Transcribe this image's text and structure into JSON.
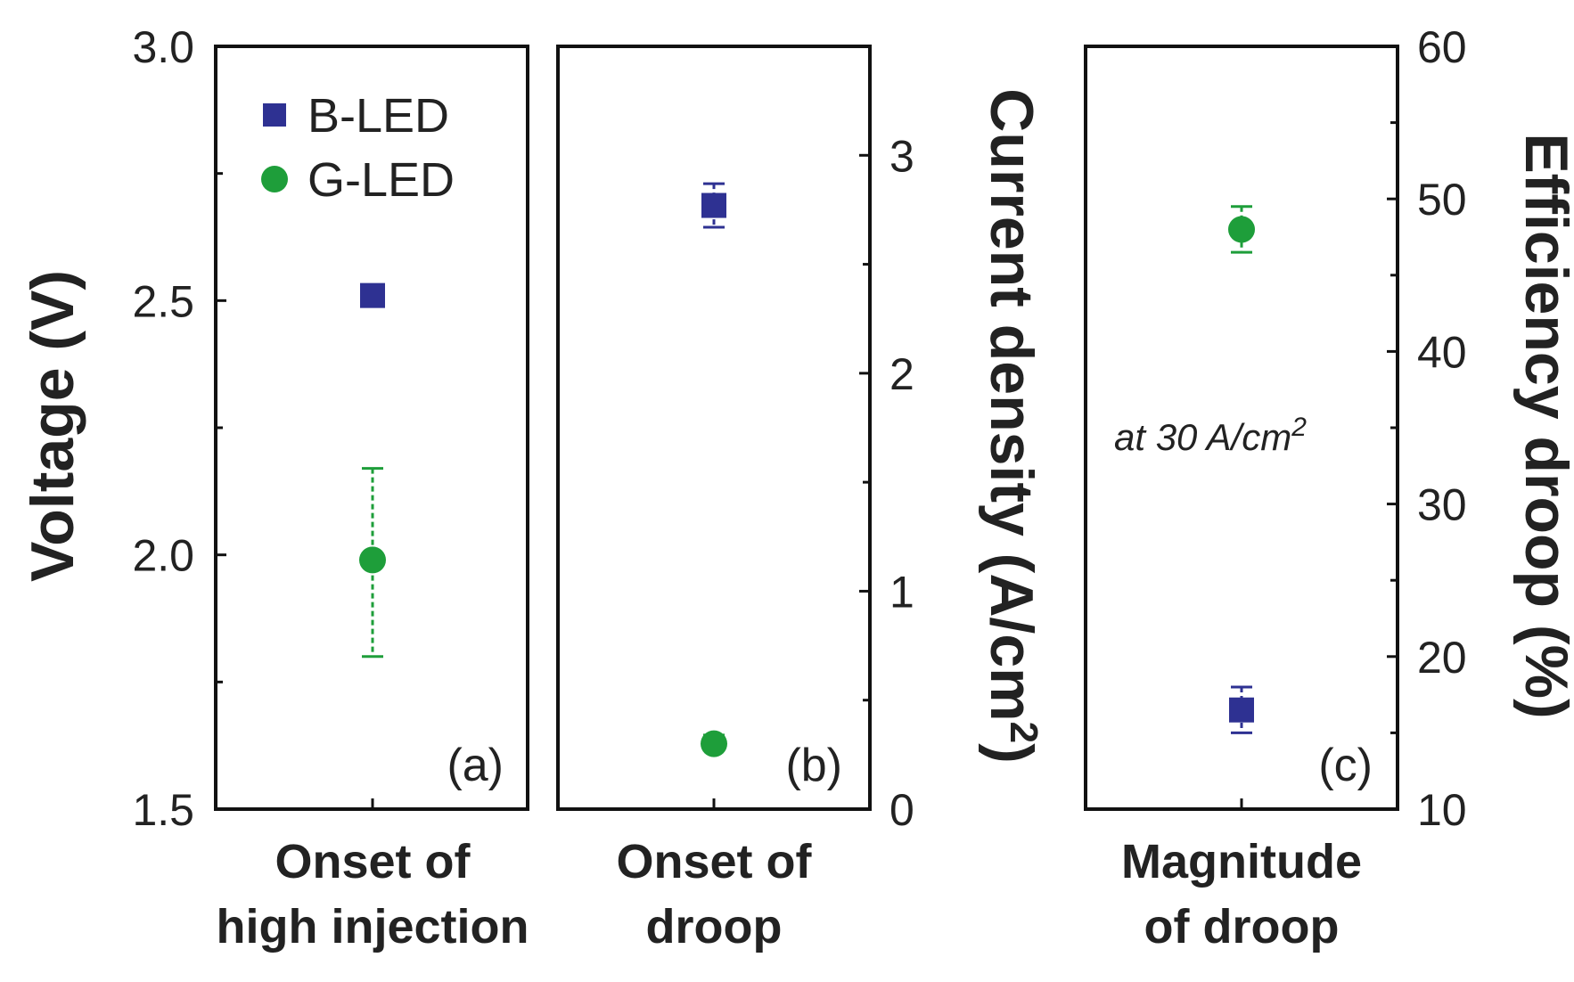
{
  "chart_data": [
    {
      "panel": "(a)",
      "type": "scatter",
      "category": [
        "Onset of",
        "high injection"
      ],
      "ylabel": "Voltage (V)",
      "ylim": [
        1.5,
        3.0
      ],
      "yticks": [
        "1.5",
        "2.0",
        "2.5",
        "3.0"
      ],
      "legend": {
        "placement": "top-left",
        "entries": [
          "B-LED",
          "G-LED"
        ]
      },
      "series": [
        {
          "name": "B-LED",
          "marker": "square",
          "color": "#2E3192",
          "value": 2.51,
          "error": [
            2.5,
            2.52
          ]
        },
        {
          "name": "G-LED",
          "marker": "circle",
          "color": "#1E9E3A",
          "value": 1.99,
          "error": [
            1.8,
            2.17
          ]
        }
      ]
    },
    {
      "panel": "(b)",
      "type": "scatter",
      "category": [
        "Onset of",
        "droop"
      ],
      "ylabel": "Current density (A/cm2)",
      "ylim": [
        0,
        3.5
      ],
      "yticks": [
        "0",
        "1",
        "2",
        "3"
      ],
      "series": [
        {
          "name": "B-LED",
          "marker": "square",
          "color": "#2E3192",
          "value": 2.77,
          "error": [
            2.67,
            2.87
          ]
        },
        {
          "name": "G-LED",
          "marker": "circle",
          "color": "#1E9E3A",
          "value": 0.3,
          "error": [
            0.27,
            0.34
          ]
        }
      ]
    },
    {
      "panel": "(c)",
      "type": "scatter",
      "category": [
        "Magnitude",
        "of droop"
      ],
      "ylabel": "Efficiency droop (%)",
      "ylim": [
        10,
        60
      ],
      "yticks": [
        "10",
        "20",
        "30",
        "40",
        "50",
        "60"
      ],
      "annotation": "at 30 A/cm²",
      "series": [
        {
          "name": "B-LED",
          "marker": "square",
          "color": "#2E3192",
          "value": 16.5,
          "error": [
            15.0,
            18.0
          ]
        },
        {
          "name": "G-LED",
          "marker": "circle",
          "color": "#1E9E3A",
          "value": 48.0,
          "error": [
            46.5,
            49.5
          ]
        }
      ]
    }
  ],
  "text": {
    "a_ylabel": "Voltage (V)",
    "b_ylabel": "Current density (A/cm",
    "b_ylabel_sup": "2",
    "b_ylabel_end": ")",
    "c_ylabel": "Efficiency droop (%)",
    "a_cat1": "Onset of",
    "a_cat2": "high injection",
    "b_cat1": "Onset of",
    "b_cat2": "droop",
    "c_cat1": "Magnitude",
    "c_cat2": "of droop",
    "panel_a": "(a)",
    "panel_b": "(b)",
    "panel_c": "(c)",
    "legend_b": "B-LED",
    "legend_g": "G-LED",
    "annot_main": "at 30 A/cm",
    "annot_sup": "2"
  }
}
